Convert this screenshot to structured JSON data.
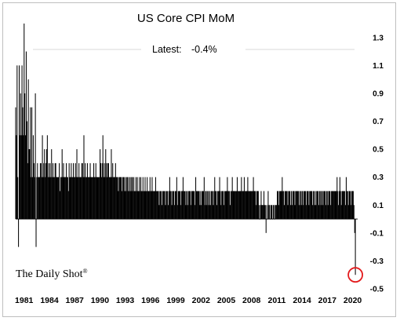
{
  "chart_data": {
    "type": "bar",
    "title": "US Core CPI MoM",
    "annotation": {
      "label": "Latest:",
      "value": "-0.4%"
    },
    "brand": "The Daily Shot",
    "brand_mark": "®",
    "x_start": 1980.0,
    "x_end": 2020.33,
    "xlim": [
      1980.0,
      2020.6
    ],
    "ylim": [
      -0.5,
      1.4
    ],
    "yticks": [
      "1.3",
      "1.1",
      "0.9",
      "0.7",
      "0.5",
      "0.3",
      "0.1",
      "-0.1",
      "-0.3",
      "-0.5"
    ],
    "ytick_values": [
      1.3,
      1.1,
      0.9,
      0.7,
      0.5,
      0.3,
      0.1,
      -0.1,
      -0.3,
      -0.5
    ],
    "xticks": [
      "1981",
      "1984",
      "1987",
      "1990",
      "1993",
      "1996",
      "1999",
      "2002",
      "2005",
      "2008",
      "2011",
      "2014",
      "2017",
      "2020"
    ],
    "xtick_values": [
      1981,
      1984,
      1987,
      1990,
      1993,
      1996,
      1999,
      2002,
      2005,
      2008,
      2011,
      2014,
      2017,
      2020
    ],
    "legend": "none",
    "grid": false,
    "highlight": {
      "x": 2020.33,
      "y": -0.4,
      "color": "#e31a1c"
    },
    "values": [
      0.8,
      0.6,
      1.1,
      0.3,
      -0.2,
      1.1,
      0.6,
      0.9,
      0.6,
      1.1,
      0.8,
      0.6,
      1.4,
      0.9,
      0.6,
      1.2,
      0.7,
      0.4,
      1.0,
      0.5,
      0.5,
      0.8,
      0.3,
      0.8,
      0.3,
      0.6,
      0.4,
      0.3,
      0.9,
      -0.2,
      0.3,
      0.4,
      0.3,
      0.3,
      0.3,
      0.4,
      0.4,
      0.3,
      0.6,
      0.3,
      0.4,
      0.5,
      0.3,
      0.4,
      0.5,
      0.6,
      0.3,
      0.4,
      0.3,
      0.4,
      0.3,
      0.5,
      0.3,
      0.4,
      0.3,
      0.3,
      0.4,
      0.4,
      0.3,
      0.3,
      0.3,
      0.3,
      0.4,
      0.2,
      0.3,
      0.3,
      0.5,
      0.3,
      0.4,
      0.3,
      0.3,
      0.3,
      0.4,
      0.3,
      0.3,
      0.2,
      0.4,
      0.3,
      0.3,
      0.4,
      0.3,
      0.3,
      0.4,
      0.3,
      0.3,
      0.4,
      0.3,
      0.5,
      0.3,
      0.3,
      0.4,
      0.3,
      0.3,
      0.3,
      0.4,
      0.4,
      0.3,
      0.6,
      0.3,
      0.4,
      0.3,
      0.3,
      0.4,
      0.3,
      0.3,
      0.3,
      0.4,
      0.3,
      0.3,
      0.3,
      0.3,
      0.4,
      0.3,
      0.3,
      0.4,
      0.3,
      0.3,
      0.3,
      0.3,
      0.3,
      0.5,
      0.4,
      0.3,
      0.4,
      0.6,
      0.3,
      0.4,
      0.3,
      0.5,
      0.4,
      0.3,
      0.4,
      0.4,
      0.3,
      0.3,
      0.3,
      0.5,
      0.3,
      0.4,
      0.3,
      0.3,
      0.3,
      0.4,
      0.3,
      0.3,
      0.3,
      0.2,
      0.3,
      0.3,
      0.3,
      0.3,
      0.2,
      0.3,
      0.3,
      0.3,
      0.2,
      0.3,
      0.2,
      0.3,
      0.3,
      0.2,
      0.3,
      0.2,
      0.3,
      0.2,
      0.3,
      0.3,
      0.2,
      0.3,
      0.2,
      0.2,
      0.3,
      0.2,
      0.3,
      0.2,
      0.2,
      0.3,
      0.2,
      0.3,
      0.2,
      0.2,
      0.3,
      0.2,
      0.2,
      0.3,
      0.2,
      0.2,
      0.3,
      0.2,
      0.2,
      0.2,
      0.3,
      0.2,
      0.2,
      0.3,
      0.2,
      0.2,
      0.2,
      0.2,
      0.3,
      0.2,
      0.2,
      0.2,
      0.2,
      0.1,
      0.2,
      0.2,
      0.2,
      0.1,
      0.2,
      0.2,
      0.2,
      0.2,
      0.1,
      0.2,
      0.2,
      0.2,
      0.1,
      0.2,
      0.3,
      0.2,
      0.2,
      0.1,
      0.2,
      0.2,
      0.2,
      0.1,
      0.2,
      0.2,
      0.3,
      0.1,
      0.2,
      0.2,
      0.2,
      0.2,
      0.1,
      0.2,
      0.2,
      0.3,
      0.2,
      0.2,
      0.2,
      0.1,
      0.2,
      0.2,
      0.1,
      0.2,
      0.2,
      0.2,
      0.1,
      0.2,
      0.2,
      0.2,
      0.2,
      0.2,
      0.1,
      0.3,
      0.2,
      0.2,
      0.2,
      0.2,
      0.2,
      0.1,
      0.2,
      0.1,
      0.2,
      0.2,
      0.2,
      0.3,
      0.1,
      0.2,
      0.2,
      0.1,
      0.2,
      0.2,
      0.1,
      0.2,
      0.1,
      0.2,
      0.2,
      0.2,
      0.1,
      0.2,
      0.3,
      0.2,
      0.2,
      0.1,
      0.2,
      0.2,
      0.2,
      0.3,
      0.2,
      0.1,
      0.2,
      0.2,
      0.2,
      0.1,
      0.2,
      0.2,
      0.2,
      0.2,
      0.3,
      0.2,
      0.2,
      0.2,
      0.1,
      0.2,
      0.2,
      0.3,
      0.2,
      0.2,
      0.2,
      0.2,
      0.2,
      0.2,
      0.3,
      0.2,
      0.2,
      0.2,
      0.2,
      0.2,
      0.3,
      0.2,
      0.2,
      0.2,
      0.3,
      0.2,
      0.2,
      0.2,
      0.2,
      0.3,
      0.2,
      0.2,
      0.2,
      0.2,
      0.2,
      0.2,
      0.2,
      0.3,
      0.2,
      0.2,
      0.2,
      0.1,
      0.2,
      0.2,
      0.2,
      0.1,
      0.0,
      0.1,
      0.2,
      0.1,
      0.1,
      0.1,
      0.2,
      0.1,
      0.1,
      -0.1,
      0.1,
      0.0,
      0.2,
      0.1,
      0.1,
      0.0,
      0.1,
      0.1,
      0.0,
      0.1,
      0.1,
      0.0,
      0.1,
      0.1,
      0.1,
      0.2,
      0.2,
      0.1,
      0.2,
      0.2,
      0.2,
      0.2,
      0.3,
      0.2,
      0.2,
      0.1,
      0.2,
      0.2,
      0.2,
      0.2,
      0.1,
      0.2,
      0.2,
      0.2,
      0.1,
      0.2,
      0.1,
      0.2,
      0.2,
      0.2,
      0.1,
      0.2,
      0.2,
      0.2,
      0.2,
      0.2,
      0.1,
      0.2,
      0.2,
      0.1,
      0.2,
      0.2,
      0.1,
      0.2,
      0.2,
      0.2,
      0.1,
      0.2,
      0.2,
      0.2,
      0.1,
      0.2,
      0.2,
      0.2,
      0.2,
      0.1,
      0.2,
      0.2,
      0.1,
      0.2,
      0.1,
      0.2,
      0.2,
      0.2,
      0.1,
      0.2,
      0.2,
      0.1,
      0.2,
      0.2,
      0.1,
      0.2,
      0.2,
      0.2,
      0.1,
      0.2,
      0.2,
      0.1,
      0.2,
      0.2,
      0.2,
      0.1,
      0.2,
      0.2,
      0.2,
      0.2,
      0.2,
      0.2,
      0.2,
      0.2,
      0.3,
      0.2,
      0.1,
      0.2,
      0.3,
      0.2,
      0.1,
      0.2,
      0.2,
      0.2,
      0.2,
      0.2,
      0.1,
      0.3,
      0.2,
      0.2,
      0.1,
      0.2,
      0.2,
      0.2,
      0.1,
      0.2,
      0.2,
      0.2,
      0.1,
      -0.1,
      -0.4
    ]
  }
}
